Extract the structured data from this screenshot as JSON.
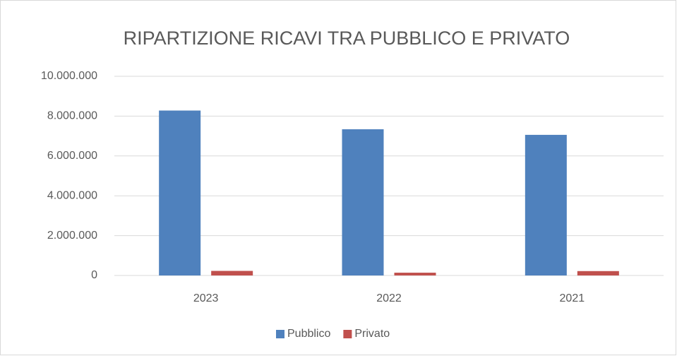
{
  "chart_data": {
    "type": "bar",
    "title": "RIPARTIZIONE RICAVI TRA PUBBLICO E PRIVATO",
    "categories": [
      "2023",
      "2022",
      "2021"
    ],
    "series": [
      {
        "name": "Pubblico",
        "color": "#4f81bd",
        "values": [
          8280000,
          7340000,
          7060000
        ]
      },
      {
        "name": "Privato",
        "color": "#c0504d",
        "values": [
          230000,
          140000,
          220000
        ]
      }
    ],
    "ylim": [
      0,
      10000000
    ],
    "yticks": [
      0,
      {
        "value": 2000000,
        "label": "2.000.000"
      },
      {
        "value": 4000000,
        "label": "4.000.000"
      },
      {
        "value": 6000000,
        "label": "6.000.000"
      },
      {
        "value": 8000000,
        "label": "8.000.000"
      },
      {
        "value": 10000000,
        "label": "10.000.000"
      }
    ],
    "grid": true,
    "legend": "bottom"
  }
}
